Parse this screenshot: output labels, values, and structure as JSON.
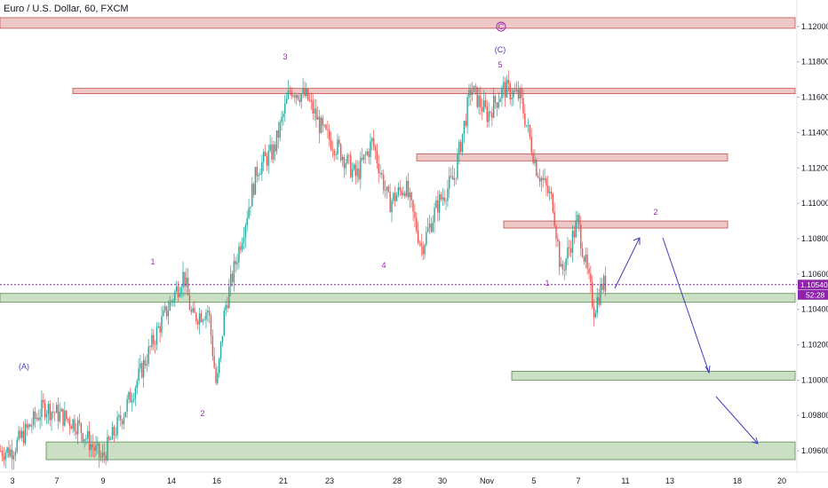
{
  "chart_data": {
    "type": "candlestick",
    "title": "Euro / U.S. Dollar, 60, FXCM",
    "y_ticks": [
      "1.12000",
      "1.11800",
      "1.11600",
      "1.11400",
      "1.11200",
      "1.11000",
      "1.10800",
      "1.10600",
      "1.10400",
      "1.10200",
      "1.10000",
      "1.09800",
      "1.09600"
    ],
    "x_ticks": [
      "3",
      "7",
      "9",
      "14",
      "16",
      "21",
      "23",
      "28",
      "30",
      "Nov",
      "5",
      "7",
      "11",
      "13",
      "18",
      "20"
    ],
    "current_price": "1.10540",
    "countdown": "52:28",
    "ylim": [
      1.0948,
      1.1215
    ],
    "zones": [
      {
        "kind": "resistance",
        "low": 1.1199,
        "high": 1.1205
      },
      {
        "kind": "resistance",
        "low": 1.1162,
        "high": 1.1165
      },
      {
        "kind": "resistance",
        "low": 1.1124,
        "high": 1.1128
      },
      {
        "kind": "resistance",
        "low": 1.1086,
        "high": 1.109
      },
      {
        "kind": "support",
        "low": 1.1044,
        "high": 1.1049
      },
      {
        "kind": "support",
        "low": 1.1,
        "high": 1.1005
      },
      {
        "kind": "support",
        "low": 1.0955,
        "high": 1.0965
      }
    ],
    "wave_labels": [
      {
        "text": "(A)",
        "color": "blue"
      },
      {
        "text": "1",
        "color": "purple"
      },
      {
        "text": "2",
        "color": "purple"
      },
      {
        "text": "3",
        "color": "purple"
      },
      {
        "text": "4",
        "color": "purple"
      },
      {
        "text": "(C)",
        "color": "blue"
      },
      {
        "text": "5",
        "color": "purple"
      },
      {
        "text": "C",
        "color": "purple"
      },
      {
        "text": "1",
        "color": "purple"
      },
      {
        "text": "2",
        "color": "purple"
      }
    ],
    "price_path_keypoints": [
      [
        3,
        1.096
      ],
      [
        5,
        1.0985
      ],
      [
        7,
        1.0975
      ],
      [
        8.5,
        1.0955
      ],
      [
        10,
        1.0985
      ],
      [
        12,
        1.103
      ],
      [
        13.5,
        1.106
      ],
      [
        14,
        1.1035
      ],
      [
        15,
        1.104
      ],
      [
        15.5,
        1.0995
      ],
      [
        16,
        1.104
      ],
      [
        17,
        1.108
      ],
      [
        18,
        1.112
      ],
      [
        19,
        1.113
      ],
      [
        20,
        1.1165
      ],
      [
        21,
        1.116
      ],
      [
        22,
        1.114
      ],
      [
        23,
        1.113
      ],
      [
        24,
        1.1115
      ],
      [
        25,
        1.1135
      ],
      [
        26,
        1.11
      ],
      [
        27,
        1.111
      ],
      [
        28,
        1.1075
      ],
      [
        29,
        1.11
      ],
      [
        30,
        1.1115
      ],
      [
        31,
        1.1165
      ],
      [
        32,
        1.115
      ],
      [
        33,
        1.1165
      ],
      [
        34,
        1.116
      ],
      [
        35,
        1.112
      ],
      [
        36,
        1.11
      ],
      [
        36.5,
        1.106
      ],
      [
        37.5,
        1.109
      ],
      [
        38,
        1.1065
      ],
      [
        38.5,
        1.104
      ],
      [
        39,
        1.1054
      ]
    ],
    "colors": {
      "up": "#26a69a",
      "down": "#ef5350",
      "resistance": "#e8b4b4",
      "support": "#b8d4b0",
      "wave": "#9c27b0",
      "arrow": "#3f3fbf",
      "current": "#8e24aa"
    }
  }
}
